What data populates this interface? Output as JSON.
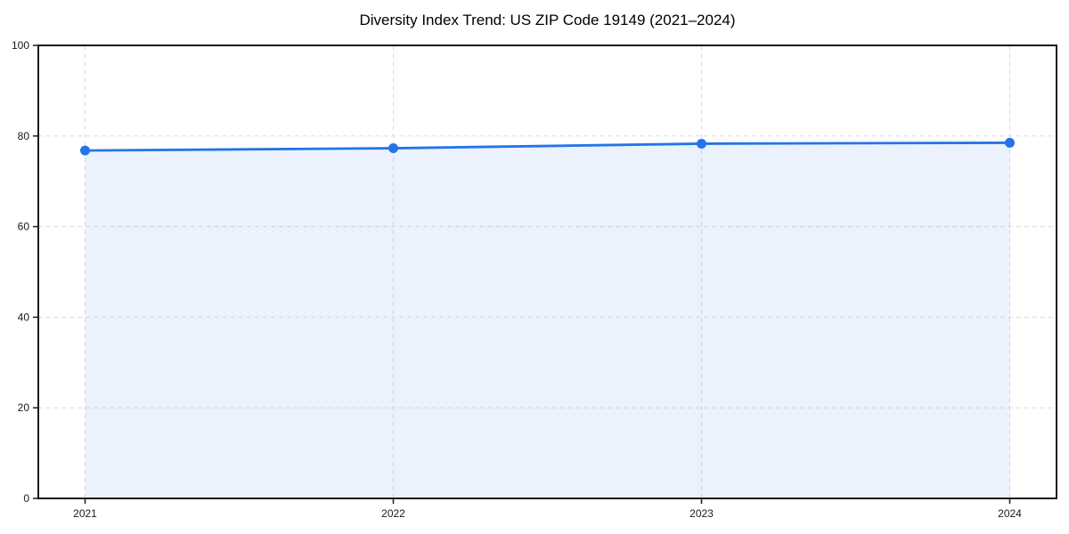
{
  "title": "Diversity Index Trend: US ZIP Code 19149 (2021–2024)",
  "chart_data": {
    "type": "area",
    "title": "Diversity Index Trend: US ZIP Code 19149 (2021–2024)",
    "categories": [
      "2021",
      "2022",
      "2023",
      "2024"
    ],
    "series": [
      {
        "name": "Diversity Index",
        "values": [
          76.8,
          77.3,
          78.3,
          78.5
        ]
      }
    ],
    "xlabel": "",
    "ylabel": "",
    "ylim": [
      0,
      100
    ],
    "yticks": [
      0,
      20,
      40,
      60,
      80,
      100
    ],
    "grid": true,
    "grid_style": "dashed",
    "legend": "none",
    "colors": {
      "line": "#2574e8",
      "marker": "#2574e8",
      "fill": "#2574e8",
      "fill_opacity": 0.09,
      "grid": "#dcdcdc",
      "axis": "#1a1a1a",
      "background": "#ffffff",
      "text": "#000000"
    }
  }
}
